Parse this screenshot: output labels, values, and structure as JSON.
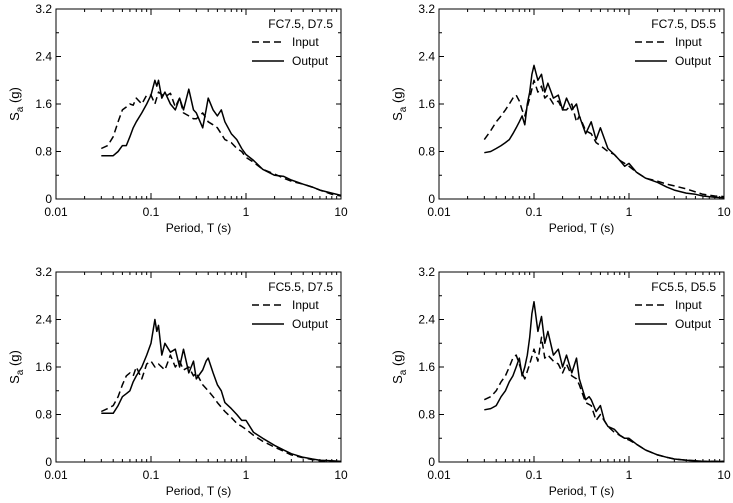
{
  "chart_data": [
    {
      "type": "line",
      "xscale": "log",
      "xlim": [
        0.01,
        10
      ],
      "ylim": [
        0,
        3.2
      ],
      "xticks": [
        "0.01",
        "0.1",
        "1",
        "10"
      ],
      "yticks": [
        "0",
        "0.8",
        "1.6",
        "2.4",
        "3.2"
      ],
      "xlabel": "Period, T (s)",
      "ylabel": "Sa (g)",
      "ylabel_main": "S",
      "ylabel_sub": "a",
      "ylabel_unit": " (g)",
      "title": "FC7.5, D7.5",
      "legend_position": "top-right",
      "series": [
        {
          "name": "Input",
          "style": "dashed",
          "x": [
            0.03,
            0.035,
            0.04,
            0.045,
            0.05,
            0.055,
            0.06,
            0.065,
            0.07,
            0.08,
            0.09,
            0.1,
            0.11,
            0.12,
            0.14,
            0.16,
            0.18,
            0.2,
            0.22,
            0.25,
            0.28,
            0.3,
            0.35,
            0.4,
            0.45,
            0.5,
            0.6,
            0.7,
            0.8,
            0.9,
            1.0,
            1.2,
            1.5,
            2.0,
            2.5,
            3.0,
            4.0,
            5.0,
            6.0,
            8.0,
            10.0
          ],
          "y": [
            0.85,
            0.9,
            1.05,
            1.3,
            1.5,
            1.55,
            1.6,
            1.58,
            1.7,
            1.6,
            1.75,
            1.75,
            1.6,
            1.8,
            1.72,
            1.78,
            1.55,
            1.7,
            1.45,
            1.4,
            1.35,
            1.35,
            1.45,
            1.3,
            1.25,
            1.2,
            1.0,
            0.95,
            0.85,
            0.8,
            0.7,
            0.62,
            0.5,
            0.42,
            0.35,
            0.3,
            0.25,
            0.2,
            0.15,
            0.08,
            0.05
          ]
        },
        {
          "name": "Output",
          "style": "solid",
          "x": [
            0.03,
            0.035,
            0.04,
            0.045,
            0.05,
            0.055,
            0.06,
            0.065,
            0.07,
            0.08,
            0.09,
            0.1,
            0.11,
            0.115,
            0.12,
            0.13,
            0.14,
            0.16,
            0.18,
            0.2,
            0.22,
            0.25,
            0.28,
            0.3,
            0.35,
            0.38,
            0.4,
            0.45,
            0.5,
            0.55,
            0.6,
            0.7,
            0.8,
            0.9,
            1.0,
            1.2,
            1.5,
            2.0,
            2.5,
            3.0,
            4.0,
            5.0,
            6.0,
            8.0,
            10.0
          ],
          "y": [
            0.73,
            0.73,
            0.73,
            0.8,
            0.9,
            0.9,
            1.05,
            1.2,
            1.3,
            1.45,
            1.6,
            1.75,
            2.0,
            1.9,
            2.0,
            1.7,
            1.8,
            1.6,
            1.5,
            1.7,
            1.5,
            1.85,
            1.5,
            1.45,
            1.2,
            1.5,
            1.7,
            1.5,
            1.4,
            1.5,
            1.3,
            1.1,
            1.0,
            0.85,
            0.75,
            0.65,
            0.5,
            0.4,
            0.38,
            0.32,
            0.25,
            0.2,
            0.15,
            0.1,
            0.06
          ]
        }
      ]
    },
    {
      "type": "line",
      "xscale": "log",
      "xlim": [
        0.01,
        10
      ],
      "ylim": [
        0,
        3.2
      ],
      "xticks": [
        "0.01",
        "0.1",
        "1",
        "10"
      ],
      "yticks": [
        "0",
        "0.8",
        "1.6",
        "2.4",
        "3.2"
      ],
      "xlabel": "Period, T (s)",
      "ylabel": "Sa (g)",
      "ylabel_main": "S",
      "ylabel_sub": "a",
      "ylabel_unit": " (g)",
      "title": "FC7.5, D5.5",
      "legend_position": "top-right",
      "series": [
        {
          "name": "Input",
          "style": "dashed",
          "x": [
            0.03,
            0.035,
            0.04,
            0.045,
            0.05,
            0.055,
            0.06,
            0.065,
            0.07,
            0.075,
            0.08,
            0.09,
            0.1,
            0.11,
            0.12,
            0.13,
            0.14,
            0.16,
            0.18,
            0.2,
            0.22,
            0.25,
            0.28,
            0.3,
            0.35,
            0.4,
            0.45,
            0.5,
            0.6,
            0.7,
            0.8,
            0.9,
            1.0,
            1.2,
            1.5,
            2.0,
            2.5,
            3.0,
            4.0,
            5.0,
            6.0,
            8.0,
            10.0
          ],
          "y": [
            1.0,
            1.15,
            1.3,
            1.4,
            1.5,
            1.6,
            1.7,
            1.75,
            1.65,
            1.5,
            1.4,
            1.7,
            2.0,
            1.8,
            1.9,
            1.7,
            1.75,
            1.6,
            1.65,
            1.5,
            1.5,
            1.6,
            1.3,
            1.4,
            1.15,
            1.1,
            0.95,
            0.9,
            0.8,
            0.75,
            0.65,
            0.6,
            0.55,
            0.45,
            0.35,
            0.3,
            0.25,
            0.22,
            0.17,
            0.12,
            0.08,
            0.05,
            0.04
          ]
        },
        {
          "name": "Output",
          "style": "solid",
          "x": [
            0.03,
            0.035,
            0.04,
            0.045,
            0.05,
            0.055,
            0.06,
            0.065,
            0.07,
            0.075,
            0.08,
            0.085,
            0.09,
            0.095,
            0.1,
            0.11,
            0.12,
            0.13,
            0.14,
            0.16,
            0.18,
            0.2,
            0.22,
            0.25,
            0.28,
            0.3,
            0.35,
            0.4,
            0.45,
            0.5,
            0.6,
            0.7,
            0.8,
            0.9,
            1.0,
            1.2,
            1.5,
            2.0,
            2.5,
            3.0,
            4.0,
            5.0,
            6.0,
            8.0,
            10.0
          ],
          "y": [
            0.78,
            0.8,
            0.85,
            0.9,
            0.95,
            1.0,
            1.1,
            1.2,
            1.3,
            1.4,
            1.25,
            1.6,
            1.8,
            2.1,
            2.25,
            2.0,
            2.1,
            1.8,
            1.95,
            1.7,
            1.75,
            1.5,
            1.7,
            1.5,
            1.6,
            1.4,
            1.1,
            1.3,
            1.0,
            1.2,
            0.85,
            0.75,
            0.65,
            0.55,
            0.6,
            0.45,
            0.35,
            0.28,
            0.2,
            0.15,
            0.1,
            0.08,
            0.05,
            0.03,
            0.02
          ]
        }
      ]
    },
    {
      "type": "line",
      "xscale": "log",
      "xlim": [
        0.01,
        10
      ],
      "ylim": [
        0,
        3.2
      ],
      "xticks": [
        "0.01",
        "0.1",
        "1",
        "10"
      ],
      "yticks": [
        "0",
        "0.8",
        "1.6",
        "2.4",
        "3.2"
      ],
      "xlabel": "Period, T (s)",
      "ylabel": "Sa (g)",
      "ylabel_main": "S",
      "ylabel_sub": "a",
      "ylabel_unit": " (g)",
      "title": "FC5.5, D7.5",
      "legend_position": "top-right",
      "series": [
        {
          "name": "Input",
          "style": "dashed",
          "x": [
            0.03,
            0.035,
            0.04,
            0.045,
            0.05,
            0.055,
            0.06,
            0.065,
            0.07,
            0.08,
            0.09,
            0.1,
            0.11,
            0.12,
            0.14,
            0.16,
            0.18,
            0.2,
            0.22,
            0.25,
            0.28,
            0.3,
            0.35,
            0.4,
            0.45,
            0.5,
            0.6,
            0.7,
            0.8,
            0.9,
            1.0,
            1.2,
            1.5,
            2.0,
            2.5,
            3.0,
            4.0,
            5.0,
            6.0,
            8.0,
            10.0
          ],
          "y": [
            0.85,
            0.9,
            0.95,
            1.1,
            1.3,
            1.45,
            1.5,
            1.45,
            1.6,
            1.4,
            1.65,
            1.7,
            1.6,
            1.65,
            1.55,
            1.8,
            1.6,
            1.7,
            1.55,
            1.6,
            1.45,
            1.5,
            1.3,
            1.2,
            1.1,
            1.0,
            0.85,
            0.75,
            0.65,
            0.6,
            0.55,
            0.45,
            0.35,
            0.25,
            0.18,
            0.12,
            0.07,
            0.04,
            0.02,
            0.01,
            0.01
          ]
        },
        {
          "name": "Output",
          "style": "solid",
          "x": [
            0.03,
            0.035,
            0.04,
            0.045,
            0.05,
            0.055,
            0.06,
            0.065,
            0.07,
            0.08,
            0.09,
            0.1,
            0.11,
            0.115,
            0.12,
            0.13,
            0.14,
            0.16,
            0.18,
            0.2,
            0.22,
            0.25,
            0.28,
            0.3,
            0.35,
            0.38,
            0.4,
            0.45,
            0.5,
            0.55,
            0.6,
            0.7,
            0.8,
            0.9,
            1.0,
            1.2,
            1.5,
            2.0,
            2.5,
            3.0,
            4.0,
            5.0,
            6.0,
            8.0,
            10.0
          ],
          "y": [
            0.82,
            0.82,
            0.82,
            0.95,
            1.1,
            1.15,
            1.2,
            1.35,
            1.45,
            1.6,
            1.8,
            2.0,
            2.4,
            2.2,
            2.3,
            1.8,
            2.0,
            1.85,
            1.9,
            1.6,
            1.9,
            1.5,
            1.7,
            1.4,
            1.55,
            1.7,
            1.75,
            1.5,
            1.3,
            1.2,
            1.0,
            0.9,
            0.8,
            0.7,
            0.7,
            0.5,
            0.4,
            0.28,
            0.2,
            0.14,
            0.08,
            0.05,
            0.03,
            0.02,
            0.01
          ]
        }
      ]
    },
    {
      "type": "line",
      "xscale": "log",
      "xlim": [
        0.01,
        10
      ],
      "ylim": [
        0,
        3.2
      ],
      "xticks": [
        "0.01",
        "0.1",
        "1",
        "10"
      ],
      "yticks": [
        "0",
        "0.8",
        "1.6",
        "2.4",
        "3.2"
      ],
      "xlabel": "Period, T (s)",
      "ylabel": "Sa (g)",
      "ylabel_main": "S",
      "ylabel_sub": "a",
      "ylabel_unit": " (g)",
      "title": "FC5.5, D5.5",
      "legend_position": "top-right",
      "series": [
        {
          "name": "Input",
          "style": "dashed",
          "x": [
            0.03,
            0.035,
            0.04,
            0.045,
            0.05,
            0.055,
            0.06,
            0.065,
            0.07,
            0.075,
            0.08,
            0.09,
            0.1,
            0.11,
            0.12,
            0.13,
            0.14,
            0.16,
            0.18,
            0.2,
            0.22,
            0.25,
            0.28,
            0.3,
            0.35,
            0.4,
            0.45,
            0.5,
            0.6,
            0.7,
            0.8,
            0.9,
            1.0,
            1.2,
            1.5,
            2.0,
            2.5,
            3.0,
            4.0,
            5.0,
            6.0,
            8.0,
            10.0
          ],
          "y": [
            1.05,
            1.1,
            1.2,
            1.35,
            1.45,
            1.6,
            1.75,
            1.8,
            1.65,
            1.5,
            1.4,
            1.65,
            1.9,
            1.7,
            2.1,
            1.75,
            1.8,
            1.7,
            1.65,
            1.5,
            1.65,
            1.45,
            1.4,
            1.3,
            1.0,
            0.95,
            0.7,
            0.8,
            0.6,
            0.5,
            0.45,
            0.4,
            0.37,
            0.3,
            0.2,
            0.12,
            0.08,
            0.05,
            0.03,
            0.02,
            0.01,
            0.01,
            0.01
          ]
        },
        {
          "name": "Output",
          "style": "solid",
          "x": [
            0.03,
            0.035,
            0.04,
            0.045,
            0.05,
            0.055,
            0.06,
            0.065,
            0.07,
            0.075,
            0.08,
            0.085,
            0.09,
            0.095,
            0.1,
            0.11,
            0.12,
            0.13,
            0.14,
            0.16,
            0.18,
            0.2,
            0.22,
            0.25,
            0.28,
            0.3,
            0.35,
            0.38,
            0.4,
            0.45,
            0.5,
            0.55,
            0.6,
            0.7,
            0.8,
            0.9,
            1.0,
            1.2,
            1.5,
            2.0,
            2.5,
            3.0,
            4.0,
            5.0,
            6.0,
            8.0,
            10.0
          ],
          "y": [
            0.88,
            0.9,
            0.95,
            1.1,
            1.2,
            1.35,
            1.45,
            1.6,
            1.75,
            1.45,
            1.6,
            1.8,
            2.1,
            2.5,
            2.7,
            2.2,
            2.45,
            2.0,
            2.2,
            1.8,
            1.9,
            1.6,
            1.8,
            1.5,
            1.75,
            1.4,
            1.05,
            1.1,
            1.05,
            0.85,
            0.95,
            0.7,
            0.6,
            0.55,
            0.45,
            0.4,
            0.4,
            0.3,
            0.2,
            0.12,
            0.08,
            0.05,
            0.03,
            0.02,
            0.01,
            0.01,
            0.01
          ]
        }
      ]
    }
  ]
}
